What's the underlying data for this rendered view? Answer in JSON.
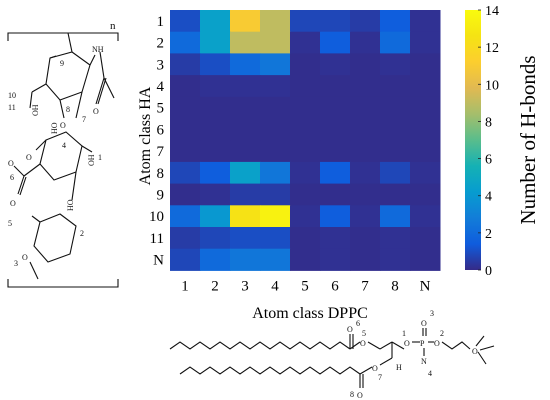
{
  "chart_data": {
    "type": "heatmap",
    "xlabel": "Atom class DPPC",
    "ylabel": "Atom class HA",
    "x_categories": [
      "1",
      "2",
      "3",
      "4",
      "5",
      "6",
      "7",
      "8",
      "N"
    ],
    "y_categories": [
      "1",
      "2",
      "3",
      "4",
      "5",
      "6",
      "7",
      "8",
      "9",
      "10",
      "11",
      "N"
    ],
    "values": [
      [
        1.0,
        4.5,
        11.0,
        9.0,
        0.8,
        0.8,
        0.5,
        1.5,
        0.2
      ],
      [
        2.0,
        4.5,
        9.0,
        9.0,
        0.2,
        1.5,
        0.2,
        2.0,
        0.2
      ],
      [
        0.5,
        1.0,
        2.0,
        2.5,
        0.1,
        0.2,
        0.1,
        0.2,
        0.1
      ],
      [
        0.1,
        0.2,
        0.2,
        0.2,
        0.1,
        0.1,
        0.1,
        0.1,
        0.1
      ],
      [
        0.1,
        0.1,
        0.1,
        0.1,
        0.1,
        0.1,
        0.1,
        0.1,
        0.1
      ],
      [
        0.1,
        0.1,
        0.1,
        0.1,
        0.1,
        0.1,
        0.1,
        0.1,
        0.1
      ],
      [
        0.1,
        0.1,
        0.1,
        0.1,
        0.1,
        0.1,
        0.1,
        0.1,
        0.1
      ],
      [
        0.8,
        1.5,
        4.5,
        2.5,
        0.2,
        1.5,
        0.2,
        0.8,
        0.2
      ],
      [
        0.1,
        0.2,
        0.5,
        0.5,
        0.1,
        0.1,
        0.1,
        0.1,
        0.1
      ],
      [
        2.0,
        4.0,
        12.5,
        13.5,
        0.2,
        1.5,
        0.2,
        2.0,
        0.2
      ],
      [
        0.5,
        0.8,
        1.0,
        1.0,
        0.1,
        0.2,
        0.1,
        0.2,
        0.1
      ],
      [
        0.8,
        2.0,
        2.5,
        2.5,
        0.1,
        0.2,
        0.1,
        0.2,
        0.1
      ]
    ],
    "colorbar": {
      "label": "Number of H-bonds",
      "range": [
        0,
        14
      ],
      "ticks": [
        0,
        2,
        4,
        6,
        8,
        10,
        12,
        14
      ],
      "colormap": "parula"
    },
    "grid": false,
    "legend": "colorbar-right"
  },
  "structures": {
    "ha": {
      "repeat_label": "n",
      "atom_numbers": [
        "9",
        "10",
        "11",
        "8",
        "7",
        "4",
        "1",
        "6",
        "5",
        "3",
        "2"
      ],
      "groups": [
        "OH",
        "NH",
        "HO",
        "OH",
        "HO",
        "O",
        "O",
        "O",
        "O",
        "O",
        "O"
      ]
    },
    "dppc": {
      "atom_numbers": [
        "6",
        "5",
        "1",
        "3",
        "2",
        "7",
        "8",
        "4"
      ],
      "groups": [
        "O",
        "O",
        "O",
        "P",
        "O",
        "O",
        "N",
        "O",
        "O",
        "O",
        "H"
      ]
    }
  }
}
